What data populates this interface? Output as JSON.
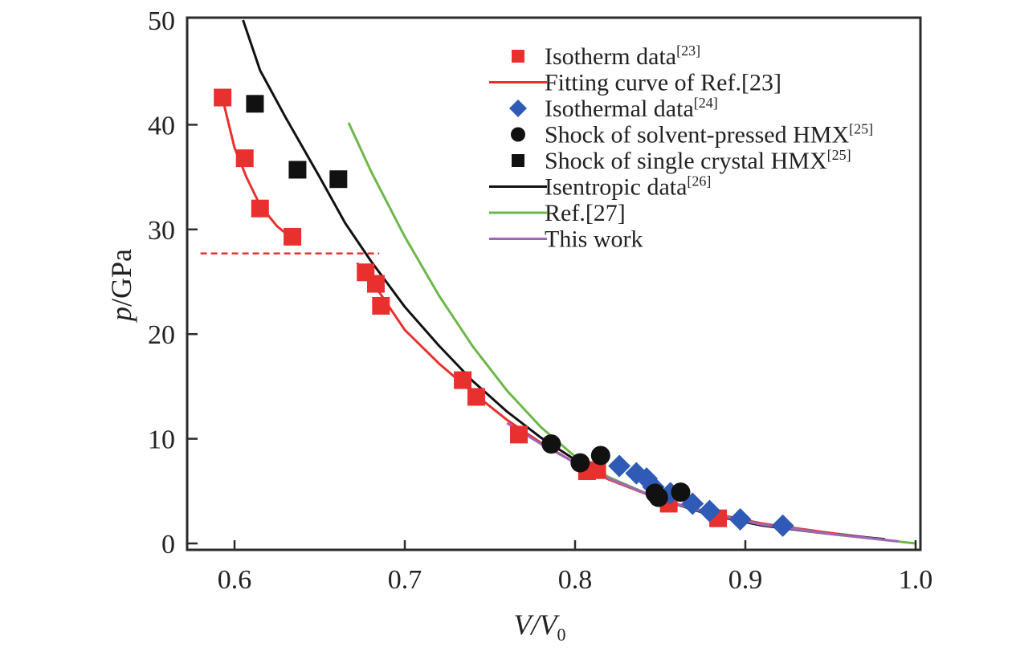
{
  "chart_data": {
    "type": "scatter",
    "title": "",
    "xlabel": "V/V0",
    "xlabel_parts": {
      "main": "V/V",
      "sub": "0"
    },
    "ylabel": "p/GPa",
    "ylabel_parts": {
      "italic": "p",
      "rest": "/GPa"
    },
    "xlim": [
      0.575,
      1.005
    ],
    "ylim": [
      -0.6,
      50
    ],
    "xticks": [
      0.6,
      0.7,
      0.8,
      0.9,
      1.0
    ],
    "xtick_labels": [
      "0.6",
      "0.7",
      "0.8",
      "0.9",
      "1.0"
    ],
    "yticks": [
      0,
      10,
      20,
      30,
      40,
      50
    ],
    "ytick_labels": [
      "0",
      "10",
      "20",
      "30",
      "40",
      "50"
    ],
    "grid": false,
    "legend_position": "top-right",
    "annotations": [
      {
        "type": "hline-dashed",
        "color": "#e8312f",
        "y": 27.7,
        "x_range": [
          0.58,
          0.685
        ]
      }
    ],
    "series": [
      {
        "name": "Isotherm data",
        "ref": "[23]",
        "kind": "marker",
        "marker": "square",
        "color": "#e8312f",
        "points": [
          [
            0.593,
            42.6
          ],
          [
            0.606,
            36.8
          ],
          [
            0.615,
            32.0
          ],
          [
            0.634,
            29.3
          ],
          [
            0.677,
            25.9
          ],
          [
            0.683,
            24.8
          ],
          [
            0.686,
            22.7
          ],
          [
            0.734,
            15.6
          ],
          [
            0.742,
            14.0
          ],
          [
            0.767,
            10.4
          ],
          [
            0.807,
            6.9
          ],
          [
            0.813,
            7.0
          ],
          [
            0.855,
            3.8
          ],
          [
            0.884,
            2.4
          ]
        ]
      },
      {
        "name": "Fitting curve of Ref.[23]",
        "ref": "",
        "kind": "line",
        "color": "#e8312f",
        "segments": [
          [
            [
              0.594,
              41.8
            ],
            [
              0.6,
              37.8
            ],
            [
              0.607,
              35.0
            ],
            [
              0.615,
              32.3
            ],
            [
              0.625,
              30.3
            ],
            [
              0.634,
              29.1
            ]
          ],
          [
            [
              0.672,
              26.8
            ],
            [
              0.68,
              25.2
            ],
            [
              0.69,
              22.8
            ],
            [
              0.7,
              20.4
            ],
            [
              0.72,
              17.2
            ],
            [
              0.74,
              14.4
            ],
            [
              0.76,
              11.8
            ],
            [
              0.78,
              9.6
            ],
            [
              0.8,
              7.7
            ],
            [
              0.82,
              6.1
            ],
            [
              0.85,
              4.2
            ],
            [
              0.88,
              2.9
            ],
            [
              0.91,
              1.9
            ],
            [
              0.95,
              1.0
            ],
            [
              0.98,
              0.4
            ]
          ]
        ]
      },
      {
        "name": "Isothermal data",
        "ref": "[24]",
        "kind": "marker",
        "marker": "diamond",
        "color": "#2f5bb7",
        "points": [
          [
            0.826,
            7.4
          ],
          [
            0.836,
            6.7
          ],
          [
            0.842,
            6.2
          ],
          [
            0.846,
            5.4
          ],
          [
            0.856,
            4.8
          ],
          [
            0.869,
            3.8
          ],
          [
            0.879,
            3.1
          ],
          [
            0.897,
            2.3
          ],
          [
            0.922,
            1.7
          ]
        ]
      },
      {
        "name": "Shock of solvent-pressed HMX",
        "ref": "[25]",
        "kind": "marker",
        "marker": "circle",
        "color": "#111111",
        "points": [
          [
            0.786,
            9.5
          ],
          [
            0.803,
            7.7
          ],
          [
            0.815,
            8.4
          ],
          [
            0.847,
            4.8
          ],
          [
            0.849,
            4.4
          ],
          [
            0.862,
            4.9
          ]
        ]
      },
      {
        "name": "Shock of single crystal HMX",
        "ref": "[25]",
        "kind": "marker",
        "marker": "square",
        "color": "#111111",
        "points": [
          [
            0.612,
            42.0
          ],
          [
            0.637,
            35.7
          ],
          [
            0.661,
            34.8
          ]
        ]
      },
      {
        "name": "Isentropic data",
        "ref": "[26]",
        "kind": "line",
        "color": "#111111",
        "segments": [
          [
            [
              0.605,
              50.0
            ],
            [
              0.615,
              45.2
            ],
            [
              0.63,
              40.7
            ],
            [
              0.65,
              35.0
            ],
            [
              0.665,
              30.6
            ],
            [
              0.68,
              27.0
            ],
            [
              0.7,
              22.6
            ],
            [
              0.72,
              18.9
            ],
            [
              0.74,
              15.5
            ],
            [
              0.76,
              12.6
            ],
            [
              0.78,
              10.1
            ],
            [
              0.8,
              8.0
            ],
            [
              0.82,
              6.3
            ],
            [
              0.85,
              4.2
            ],
            [
              0.88,
              2.7
            ],
            [
              0.91,
              1.7
            ],
            [
              0.95,
              0.9
            ],
            [
              0.982,
              0.4
            ]
          ]
        ]
      },
      {
        "name": "Ref.[27]",
        "ref": "",
        "kind": "line",
        "color": "#6cb84a",
        "segments": [
          [
            [
              0.667,
              40.2
            ],
            [
              0.68,
              35.6
            ],
            [
              0.7,
              29.3
            ],
            [
              0.72,
              23.7
            ],
            [
              0.74,
              18.8
            ],
            [
              0.76,
              14.6
            ],
            [
              0.78,
              11.1
            ],
            [
              0.8,
              8.3
            ],
            [
              0.82,
              6.3
            ],
            [
              0.85,
              4.2
            ],
            [
              0.88,
              2.8
            ],
            [
              0.91,
              1.8
            ],
            [
              0.95,
              0.9
            ],
            [
              1.0,
              0.0
            ]
          ]
        ]
      },
      {
        "name": "This work",
        "ref": "",
        "kind": "line",
        "color": "#a066b8",
        "segments": [
          [
            [
              0.76,
              11.5
            ],
            [
              0.78,
              9.5
            ],
            [
              0.8,
              7.7
            ],
            [
              0.82,
              6.2
            ],
            [
              0.85,
              4.2
            ],
            [
              0.88,
              2.8
            ],
            [
              0.91,
              1.8
            ],
            [
              0.95,
              0.9
            ],
            [
              0.99,
              0.2
            ]
          ]
        ]
      }
    ],
    "legend": [
      {
        "label": "Isotherm data",
        "sup": "[23]",
        "symbol": "square",
        "color": "#e8312f"
      },
      {
        "label": "Fitting curve of Ref.[23]",
        "sup": "",
        "symbol": "line",
        "color": "#e8312f"
      },
      {
        "label": "Isothermal data",
        "sup": "[24]",
        "symbol": "diamond",
        "color": "#2f5bb7"
      },
      {
        "label": "Shock of solvent-pressed HMX",
        "sup": "[25]",
        "symbol": "circle",
        "color": "#111111"
      },
      {
        "label": "Shock of single crystal HMX",
        "sup": "[25]",
        "symbol": "square",
        "color": "#111111"
      },
      {
        "label": "Isentropic data",
        "sup": "[26]",
        "symbol": "line",
        "color": "#111111"
      },
      {
        "label": "Ref.[27]",
        "sup": "",
        "symbol": "line",
        "color": "#6cb84a"
      },
      {
        "label": "This work",
        "sup": "",
        "symbol": "line",
        "color": "#a066b8"
      }
    ]
  }
}
